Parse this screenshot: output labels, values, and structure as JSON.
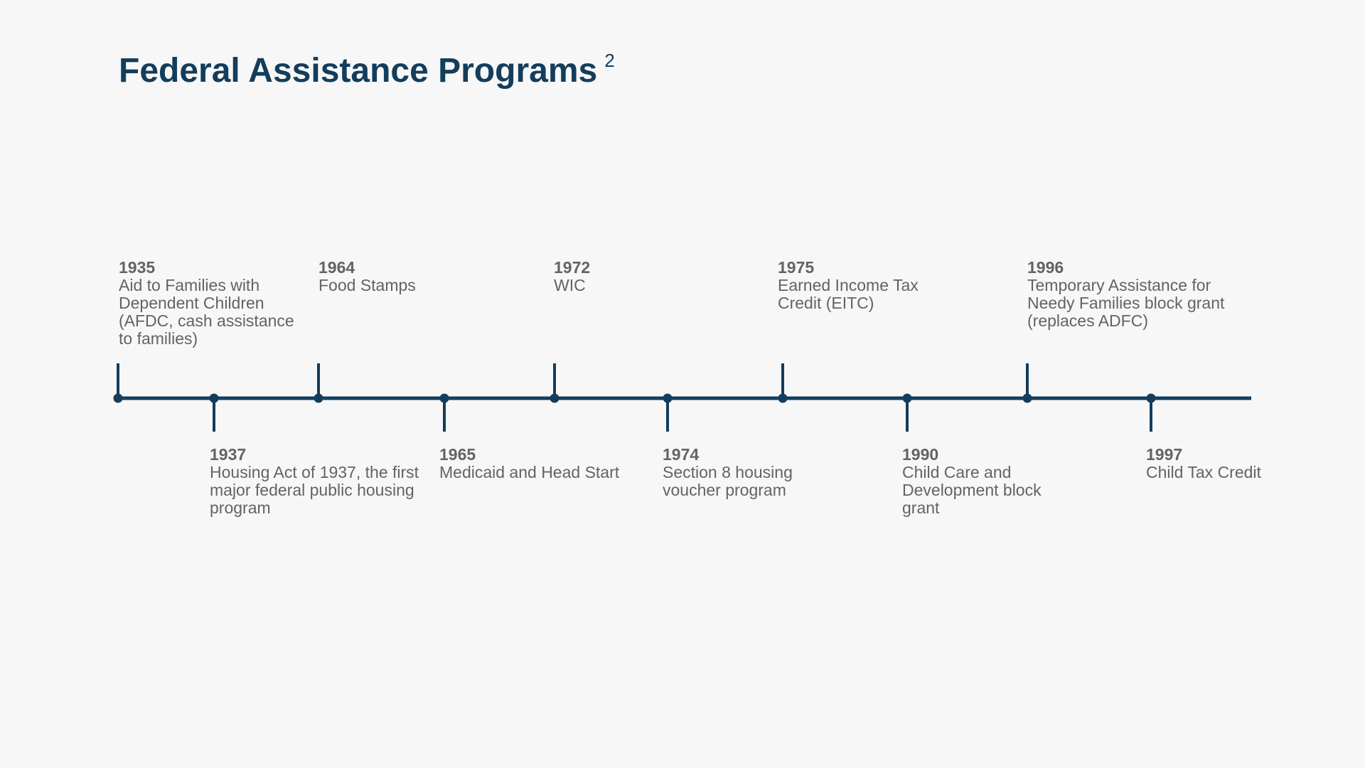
{
  "title": "Federal Assistance Programs",
  "title_superscript": "2",
  "colors": {
    "accent": "#143d5c",
    "text": "#636363",
    "background": "#f7f7f7"
  },
  "events": [
    {
      "year": "1935",
      "text": "Aid to Families with Dependent Children (AFDC, cash assistance to families)",
      "position": "above"
    },
    {
      "year": "1937",
      "text": "Housing Act of 1937, the first major federal public housing program",
      "position": "below"
    },
    {
      "year": "1964",
      "text": "Food Stamps",
      "position": "above"
    },
    {
      "year": "1965",
      "text": "Medicaid and Head Start",
      "position": "below"
    },
    {
      "year": "1972",
      "text": "WIC",
      "position": "above"
    },
    {
      "year": "1974",
      "text": "Section 8 housing voucher program",
      "position": "below"
    },
    {
      "year": "1975",
      "text": "Earned Income Tax Credit  (EITC)",
      "position": "above"
    },
    {
      "year": "1990",
      "text": "Child Care and Development block grant",
      "position": "below"
    },
    {
      "year": "1996",
      "text": "Temporary Assistance for Needy Families block grant (replaces ADFC)",
      "position": "above"
    },
    {
      "year": "1997",
      "text": "Child Tax Credit",
      "position": "below"
    }
  ]
}
